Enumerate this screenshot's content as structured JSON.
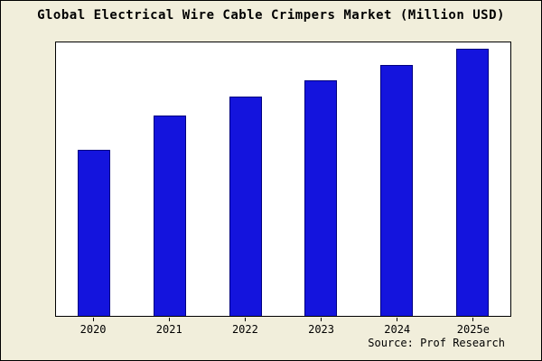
{
  "title": "Global Electrical Wire Cable Crimpers Market (Million USD)",
  "source": "Source: Prof Research",
  "colors": {
    "background": "#f1eedb",
    "plot_background": "#ffffff",
    "bar_fill": "#1414dd",
    "bar_border": "#000080",
    "frame_border": "#000000",
    "text": "#000000"
  },
  "chart_data": {
    "type": "bar",
    "categories": [
      "2020",
      "2021",
      "2022",
      "2023",
      "2024",
      "2025e"
    ],
    "values": [
      62,
      75,
      82,
      88,
      94,
      100
    ],
    "title": "Global Electrical Wire Cable Crimpers Market (Million USD)",
    "xlabel": "",
    "ylabel": "",
    "ylim": [
      0,
      103
    ],
    "grid": false,
    "legend": false,
    "annotations": [
      "Source: Prof Research"
    ]
  }
}
